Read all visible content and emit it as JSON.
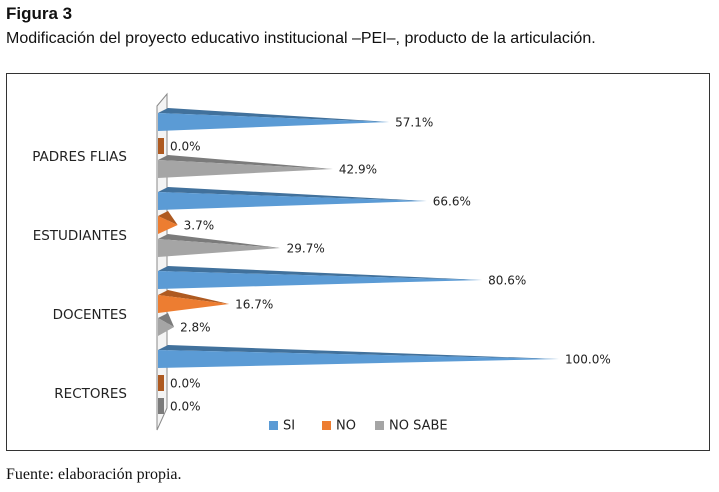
{
  "figure": {
    "label": "Figura 3",
    "caption": "Modificación del proyecto educativo institucional –PEI–, producto de la articulación.",
    "source": "Fuente: elaboración propia."
  },
  "colors": {
    "si": "#5b9bd5",
    "no": "#ed7d31",
    "no_sabe": "#a5a5a5"
  },
  "chart_data": {
    "type": "bar",
    "orientation": "horizontal",
    "style": "3d-cone",
    "categories": [
      "PADRES FLIAS",
      "ESTUDIANTES",
      "DOCENTES",
      "RECTORES"
    ],
    "series": [
      {
        "name": "SI",
        "values": [
          57.1,
          66.6,
          80.6,
          100.0
        ],
        "labels": [
          "57.1%",
          "66.6%",
          "80.6%",
          "100.0%"
        ]
      },
      {
        "name": "NO",
        "values": [
          0.0,
          3.7,
          16.7,
          0.0
        ],
        "labels": [
          "0.0%",
          "3.7%",
          "16.7%",
          "0.0%"
        ]
      },
      {
        "name": "NO SABE",
        "values": [
          42.9,
          29.7,
          2.8,
          0.0
        ],
        "labels": [
          "42.9%",
          "29.7%",
          "2.8%",
          "0.0%"
        ]
      }
    ],
    "xlim": [
      0,
      100
    ],
    "grid": false,
    "legend": "bottom",
    "title": "",
    "xlabel": "",
    "ylabel": ""
  }
}
